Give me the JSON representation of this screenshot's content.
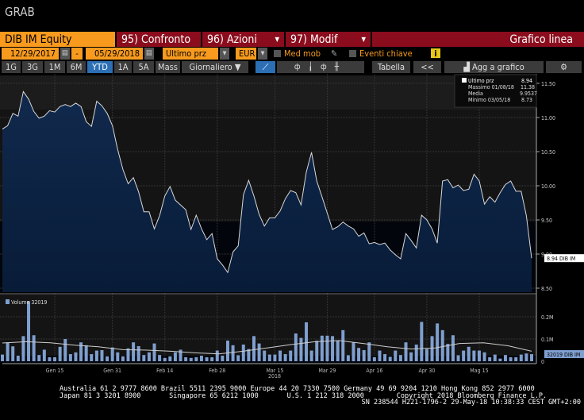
{
  "window_title": "GRAB",
  "toolbar": {
    "security": "DIB IM Equity",
    "compare": "95) Confronto",
    "actions": "96) Azioni",
    "edit": "97) Modif",
    "chart_type": "Grafico linea",
    "start_date": "12/29/2017",
    "dash": "-",
    "end_date": "05/29/2018",
    "field": "Ultimo prz",
    "currency": "EUR",
    "moving_avg": "Med mob",
    "key_events": "Eventi chiave",
    "info": "i",
    "periods": [
      "1G",
      "3G",
      "1M",
      "6M",
      "YTD",
      "1A",
      "5A",
      "Mass"
    ],
    "selected_period": "YTD",
    "frequency": "Giornaliero ▼",
    "table": "Tabella",
    "collapse": "<<",
    "add_to_chart": "Agg a grafico"
  },
  "legend": {
    "last_label": "Ultimo prz",
    "last_value": "8.94",
    "high_label": "Massimo 01/08/18",
    "high_value": "11.38",
    "avg_label": "Media",
    "avg_value": "9.9537",
    "low_label": "Minimo 03/05/18",
    "low_value": "8.73"
  },
  "colors": {
    "orange": "#f79a1e",
    "red": "#8b0d1d",
    "fill": "#0d2648",
    "line": "#d8d8d8",
    "volume": "#7f9fcf"
  },
  "chart_data": {
    "type": "area",
    "price": {
      "ylim": [
        8.5,
        11.5
      ],
      "yticks": [
        "8.50",
        "9.00",
        "9.50",
        "10.00",
        "10.50",
        "11.00",
        "11.50"
      ],
      "last_label": "8.94 DIB IM",
      "values": [
        10.83,
        10.88,
        11.06,
        11.02,
        11.38,
        11.27,
        11.09,
        10.99,
        11.02,
        11.1,
        11.08,
        11.16,
        11.19,
        11.16,
        11.21,
        11.16,
        10.94,
        10.87,
        11.24,
        11.17,
        11.06,
        10.88,
        10.53,
        10.24,
        10.03,
        10.12,
        9.91,
        9.62,
        9.62,
        9.37,
        9.56,
        9.85,
        9.99,
        9.79,
        9.72,
        9.65,
        9.36,
        9.57,
        9.37,
        9.21,
        9.3,
        8.93,
        8.84,
        8.73,
        9.03,
        9.12,
        9.87,
        10.08,
        9.85,
        9.58,
        9.41,
        9.53,
        9.53,
        9.63,
        9.81,
        9.93,
        9.9,
        9.72,
        10.2,
        10.49,
        10.07,
        9.84,
        9.6,
        9.36,
        9.4,
        9.47,
        9.41,
        9.37,
        9.26,
        9.31,
        9.15,
        9.17,
        9.14,
        9.16,
        9.06,
        8.99,
        8.93,
        9.3,
        9.2,
        9.09,
        9.57,
        9.5,
        9.37,
        9.16,
        10.07,
        10.09,
        9.97,
        10.01,
        9.93,
        9.95,
        10.17,
        10.07,
        9.73,
        9.84,
        9.76,
        9.9,
        10.02,
        10.07,
        9.92,
        9.92,
        9.56,
        8.94
      ]
    },
    "volume": {
      "legend": "Volume  32019",
      "last_label": "32019 DIB IM",
      "ylim": [
        0,
        0.28
      ],
      "yticks": [
        "0",
        "0.1M",
        "0.2M"
      ],
      "unit": "M",
      "values": [
        0.03,
        0.085,
        0.067,
        0.025,
        0.113,
        0.27,
        0.117,
        0.028,
        0.052,
        0.018,
        0.018,
        0.065,
        0.1,
        0.032,
        0.04,
        0.085,
        0.072,
        0.032,
        0.048,
        0.05,
        0.022,
        0.062,
        0.04,
        0.022,
        0.058,
        0.085,
        0.068,
        0.028,
        0.04,
        0.08,
        0.028,
        0.015,
        0.022,
        0.04,
        0.052,
        0.018,
        0.015,
        0.018,
        0.025,
        0.018,
        0.018,
        0.048,
        0.025,
        0.093,
        0.072,
        0.027,
        0.075,
        0.055,
        0.113,
        0.08,
        0.048,
        0.03,
        0.03,
        0.048,
        0.032,
        0.048,
        0.125,
        0.105,
        0.175,
        0.048,
        0.092,
        0.115,
        0.115,
        0.113,
        0.092,
        0.14,
        0.027,
        0.085,
        0.06,
        0.05,
        0.085,
        0.018,
        0.048,
        0.032,
        0.02,
        0.048,
        0.028,
        0.085,
        0.04,
        0.075,
        0.177,
        0.055,
        0.113,
        0.17,
        0.14,
        0.078,
        0.117,
        0.027,
        0.048,
        0.065,
        0.048,
        0.048,
        0.04,
        0.018,
        0.03,
        0.012,
        0.028,
        0.018,
        0.018,
        0.03,
        0.035,
        0.032
      ],
      "moving_avg": [
        0.082,
        0.088,
        0.083,
        0.072,
        0.065,
        0.052,
        0.05,
        0.045,
        0.038,
        0.033,
        0.045,
        0.06,
        0.075,
        0.088,
        0.093,
        0.08,
        0.065,
        0.055,
        0.06,
        0.08,
        0.083,
        0.07,
        0.045
      ]
    },
    "xticks": [
      {
        "label": "Gen 15",
        "index": 10
      },
      {
        "label": "Gen 31",
        "index": 21
      },
      {
        "label": "Feb 14",
        "index": 31
      },
      {
        "label": "Feb 28",
        "index": 41
      },
      {
        "label": "Mar 15",
        "index": 52
      },
      {
        "label": "Mar 29",
        "index": 62
      },
      {
        "label": "Apr 16",
        "index": 71
      },
      {
        "label": "Apr 30",
        "index": 81
      },
      {
        "label": "Mag 15",
        "index": 91
      }
    ],
    "year_label": "2018"
  },
  "footer": {
    "line1": "Australia 61 2 9777 8600 Brazil 5511 2395 9000 Europe 44 20 7330 7500 Germany 49 69 9204 1210 Hong Kong 852 2977 6000",
    "line2": "Japan 81 3 3201 8900       Singapore 65 6212 1000       U.S. 1 212 318 2000        Copyright 2018 Bloomberg Finance L.P.",
    "line3": "SN 238544 H221-1796-2 29-May-18 10:38:33 CEST GMT+2:00"
  }
}
